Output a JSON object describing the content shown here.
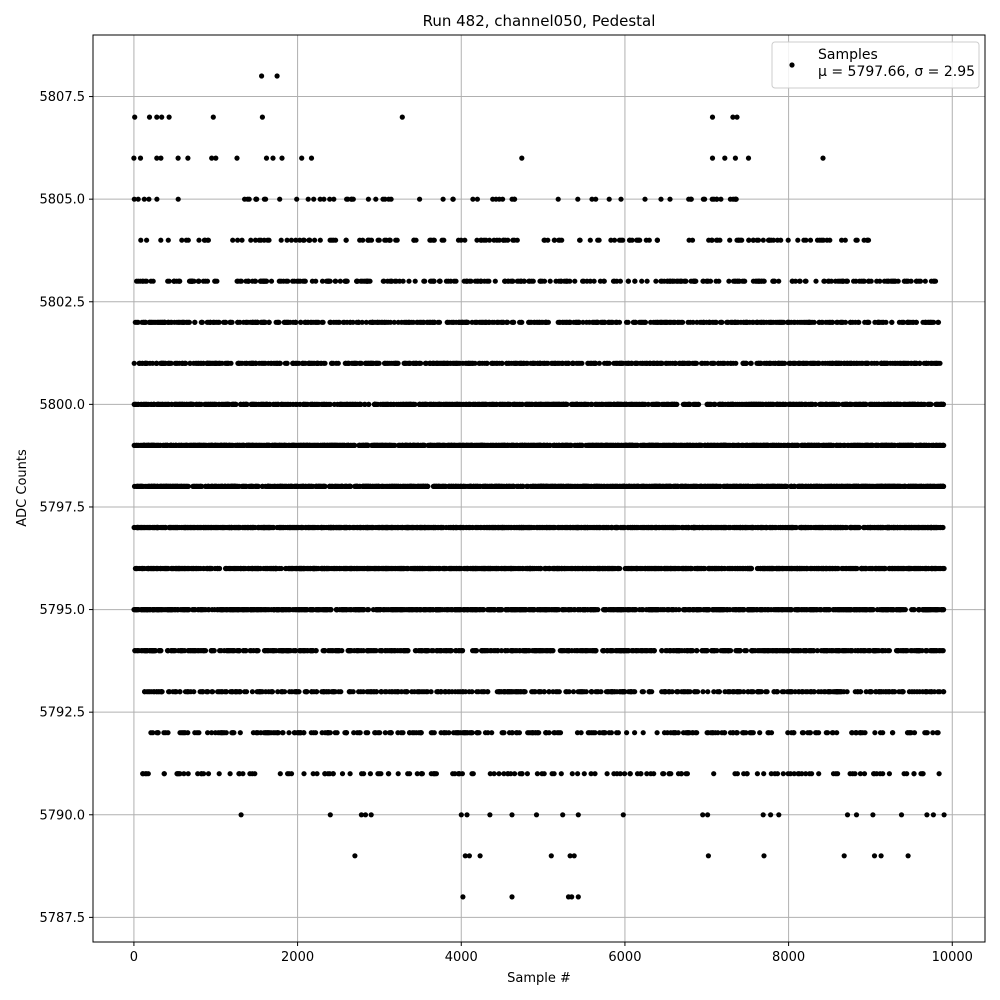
{
  "chart_data": {
    "type": "scatter",
    "title": "Run 482, channel050, Pedestal",
    "xlabel": "Sample #",
    "ylabel": "ADC Counts",
    "xlim": [
      -500,
      10400
    ],
    "ylim": [
      5786.9,
      5809.0
    ],
    "xticks": [
      0,
      2000,
      4000,
      6000,
      8000,
      10000
    ],
    "xtick_labels": [
      "0",
      "2000",
      "4000",
      "6000",
      "8000",
      "10000"
    ],
    "yticks": [
      5787.5,
      5790.0,
      5792.5,
      5795.0,
      5797.5,
      5800.0,
      5802.5,
      5805.0,
      5807.5
    ],
    "ytick_labels": [
      "5787.5",
      "5790.0",
      "5792.5",
      "5795.0",
      "5797.5",
      "5800.0",
      "5802.5",
      "5805.0",
      "5807.5"
    ],
    "grid": true,
    "legend_position": "top-right",
    "marker_color": "#000000",
    "series": [
      {
        "name": "Samples",
        "stats_label": "μ = 5797.66, σ = 2.95",
        "points": [
          {
            "x": 10,
            "y": 5807
          },
          {
            "x": 190,
            "y": 5807
          },
          {
            "x": 280,
            "y": 5807
          },
          {
            "x": 340,
            "y": 5807
          },
          {
            "x": 430,
            "y": 5807
          },
          {
            "x": 970,
            "y": 5807
          },
          {
            "x": 1570,
            "y": 5807
          },
          {
            "x": 3280,
            "y": 5807
          },
          {
            "x": 7070,
            "y": 5807
          },
          {
            "x": 7320,
            "y": 5807
          },
          {
            "x": 7370,
            "y": 5807
          },
          {
            "x": 1560,
            "y": 5808
          },
          {
            "x": 1750,
            "y": 5808
          },
          {
            "x": 0,
            "y": 5806
          },
          {
            "x": 80,
            "y": 5806
          },
          {
            "x": 280,
            "y": 5806
          },
          {
            "x": 330,
            "y": 5806
          },
          {
            "x": 540,
            "y": 5806
          },
          {
            "x": 660,
            "y": 5806
          },
          {
            "x": 950,
            "y": 5806
          },
          {
            "x": 1000,
            "y": 5806
          },
          {
            "x": 1260,
            "y": 5806
          },
          {
            "x": 1620,
            "y": 5806
          },
          {
            "x": 1700,
            "y": 5806
          },
          {
            "x": 1810,
            "y": 5806
          },
          {
            "x": 2050,
            "y": 5806
          },
          {
            "x": 2170,
            "y": 5806
          },
          {
            "x": 4740,
            "y": 5806
          },
          {
            "x": 7070,
            "y": 5806
          },
          {
            "x": 7220,
            "y": 5806
          },
          {
            "x": 7350,
            "y": 5806
          },
          {
            "x": 7510,
            "y": 5806
          },
          {
            "x": 8420,
            "y": 5806
          },
          {
            "x": 4020,
            "y": 5788
          },
          {
            "x": 4620,
            "y": 5788
          },
          {
            "x": 5310,
            "y": 5788
          },
          {
            "x": 5350,
            "y": 5788
          },
          {
            "x": 5430,
            "y": 5788
          },
          {
            "x": 2700,
            "y": 5789
          },
          {
            "x": 4050,
            "y": 5789
          },
          {
            "x": 4100,
            "y": 5789
          },
          {
            "x": 4230,
            "y": 5789
          },
          {
            "x": 5100,
            "y": 5789
          },
          {
            "x": 5330,
            "y": 5789
          },
          {
            "x": 5380,
            "y": 5789
          },
          {
            "x": 7020,
            "y": 5789
          },
          {
            "x": 7700,
            "y": 5789
          },
          {
            "x": 8680,
            "y": 5789
          },
          {
            "x": 9050,
            "y": 5789
          },
          {
            "x": 9130,
            "y": 5789
          },
          {
            "x": 9460,
            "y": 5789
          },
          {
            "x": 1310,
            "y": 5790
          },
          {
            "x": 2400,
            "y": 5790
          },
          {
            "x": 2780,
            "y": 5790
          },
          {
            "x": 2830,
            "y": 5790
          },
          {
            "x": 2900,
            "y": 5790
          },
          {
            "x": 4000,
            "y": 5790
          },
          {
            "x": 4070,
            "y": 5790
          },
          {
            "x": 4350,
            "y": 5790
          },
          {
            "x": 4620,
            "y": 5790
          },
          {
            "x": 4920,
            "y": 5790
          },
          {
            "x": 5240,
            "y": 5790
          },
          {
            "x": 5430,
            "y": 5790
          },
          {
            "x": 5980,
            "y": 5790
          },
          {
            "x": 6950,
            "y": 5790
          },
          {
            "x": 7010,
            "y": 5790
          },
          {
            "x": 7690,
            "y": 5790
          },
          {
            "x": 7780,
            "y": 5790
          },
          {
            "x": 7880,
            "y": 5790
          },
          {
            "x": 8720,
            "y": 5790
          },
          {
            "x": 8830,
            "y": 5790
          },
          {
            "x": 9030,
            "y": 5790
          },
          {
            "x": 9380,
            "y": 5790
          },
          {
            "x": 9690,
            "y": 5790
          },
          {
            "x": 9770,
            "y": 5790
          },
          {
            "x": 9900,
            "y": 5790
          }
        ],
        "dense_bands": [
          {
            "y": 5804,
            "x_from": 0,
            "x_to": 9000,
            "approx_count": 160
          },
          {
            "y": 5803,
            "x_from": 0,
            "x_to": 9800,
            "approx_count": 320
          },
          {
            "y": 5802,
            "x_from": 0,
            "x_to": 9850,
            "approx_count": 520
          },
          {
            "y": 5801,
            "x_from": 0,
            "x_to": 9850,
            "approx_count": 650
          },
          {
            "y": 5800,
            "x_from": 0,
            "x_to": 9900,
            "approx_count": 900
          },
          {
            "y": 5799,
            "x_from": 0,
            "x_to": 9900,
            "approx_count": 1300
          },
          {
            "y": 5798,
            "x_from": 0,
            "x_to": 9900,
            "approx_count": 1300
          },
          {
            "y": 5797,
            "x_from": 0,
            "x_to": 9900,
            "approx_count": 1300
          },
          {
            "y": 5796,
            "x_from": 0,
            "x_to": 9900,
            "approx_count": 1200
          },
          {
            "y": 5795,
            "x_from": 0,
            "x_to": 9900,
            "approx_count": 950
          },
          {
            "y": 5794,
            "x_from": 0,
            "x_to": 9900,
            "approx_count": 650
          },
          {
            "y": 5793,
            "x_from": 100,
            "x_to": 9900,
            "approx_count": 450
          },
          {
            "y": 5792,
            "x_from": 200,
            "x_to": 9900,
            "approx_count": 280
          },
          {
            "y": 5791,
            "x_from": 100,
            "x_to": 9900,
            "approx_count": 160
          },
          {
            "y": 5805,
            "x_from": 0,
            "x_to": 7600,
            "approx_count": 70
          }
        ]
      }
    ]
  }
}
